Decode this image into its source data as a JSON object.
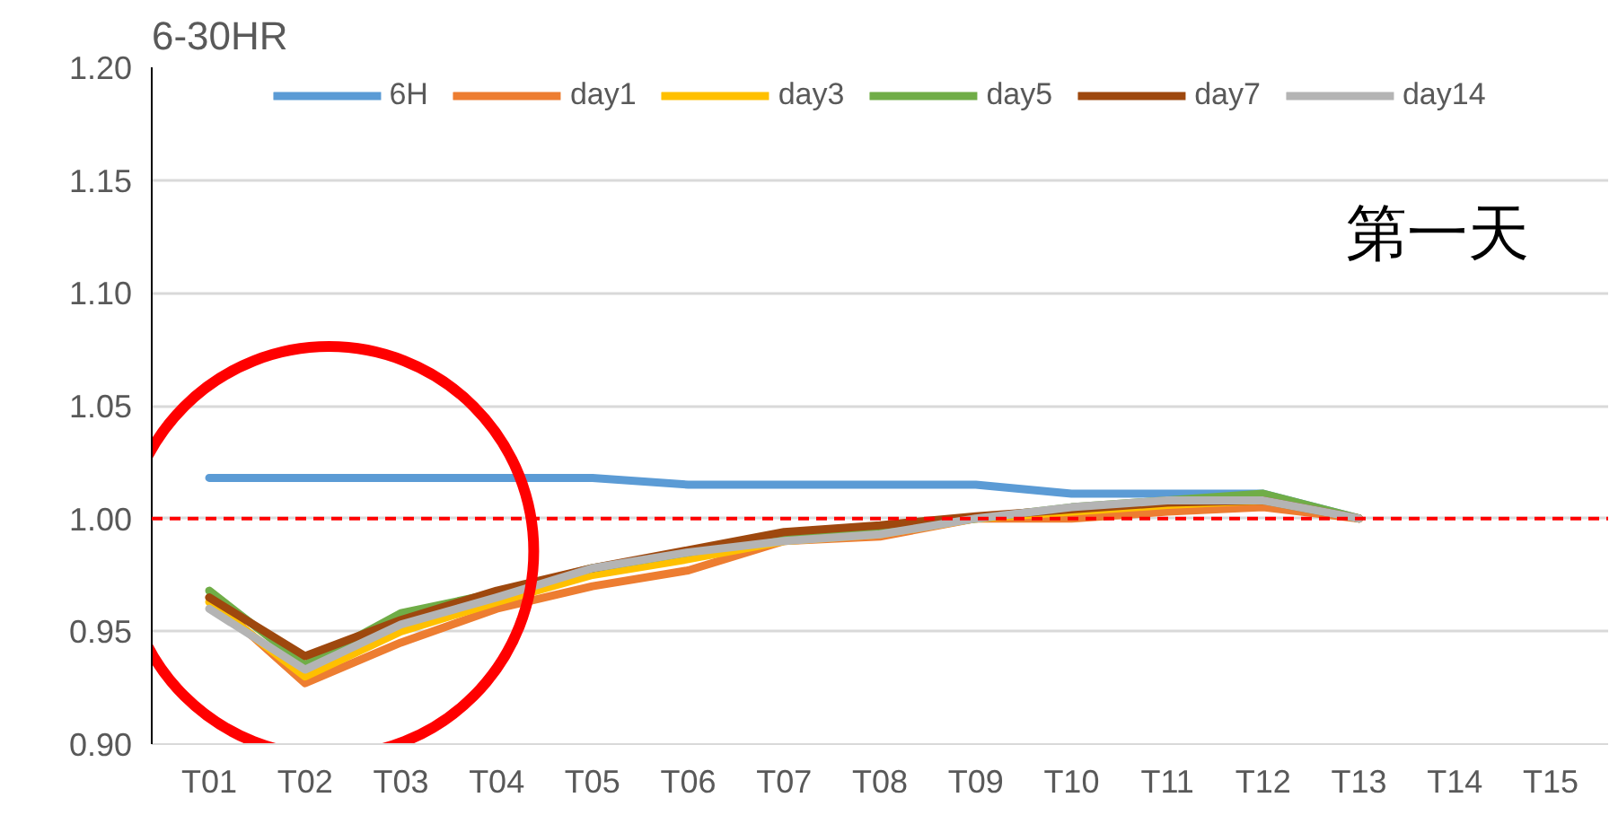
{
  "chart_data": {
    "type": "line",
    "title": "6-30HR",
    "categories": [
      "T01",
      "T02",
      "T03",
      "T04",
      "T05",
      "T06",
      "T07",
      "T08",
      "T09",
      "T10",
      "T11",
      "T12",
      "T13",
      "T14",
      "T15"
    ],
    "series": [
      {
        "name": "6H",
        "color": "#5b9bd5",
        "values": [
          1.018,
          1.018,
          1.018,
          1.018,
          1.018,
          1.015,
          1.015,
          1.015,
          1.015,
          1.011,
          1.011,
          1.011,
          1.0,
          null,
          null
        ]
      },
      {
        "name": "day1",
        "color": "#ed7d31",
        "values": [
          0.965,
          0.927,
          0.945,
          0.96,
          0.97,
          0.977,
          0.99,
          0.992,
          1.0,
          1.0,
          1.003,
          1.005,
          1.0,
          null,
          null
        ]
      },
      {
        "name": "day3",
        "color": "#ffc000",
        "values": [
          0.963,
          0.93,
          0.95,
          0.963,
          0.975,
          0.982,
          0.99,
          0.993,
          1.0,
          1.003,
          1.006,
          1.008,
          1.0,
          null,
          null
        ]
      },
      {
        "name": "day5",
        "color": "#70ad47",
        "values": [
          0.968,
          0.935,
          0.958,
          0.967,
          0.978,
          0.985,
          0.992,
          0.995,
          1.0,
          1.005,
          1.008,
          1.011,
          1.0,
          null,
          null
        ]
      },
      {
        "name": "day7",
        "color": "#9e480e",
        "values": [
          0.965,
          0.939,
          0.955,
          0.968,
          0.978,
          0.986,
          0.994,
          0.997,
          1.001,
          1.004,
          1.007,
          1.008,
          1.0,
          null,
          null
        ]
      },
      {
        "name": "day14",
        "color": "#b4b4b4",
        "values": [
          0.96,
          0.933,
          0.953,
          0.965,
          0.978,
          0.985,
          0.99,
          0.993,
          1.0,
          1.005,
          1.008,
          1.008,
          1.0,
          null,
          null
        ]
      }
    ],
    "ylim": [
      0.9,
      1.2
    ],
    "yticks": [
      {
        "value": 0.9,
        "label": "0.90"
      },
      {
        "value": 0.95,
        "label": "0.95"
      },
      {
        "value": 1.0,
        "label": "1.00"
      },
      {
        "value": 1.05,
        "label": "1.05"
      },
      {
        "value": 1.1,
        "label": "1.10"
      },
      {
        "value": 1.15,
        "label": "1.15"
      },
      {
        "value": 1.2,
        "label": "1.20"
      }
    ],
    "ref_lines": [
      {
        "axis": "y",
        "value": 1.0,
        "color": "#ff0000",
        "line_style": "dashed"
      }
    ],
    "annotations": [
      "第一天"
    ],
    "grid": "y",
    "legend": "top",
    "line_style": "solid",
    "marker": "none"
  }
}
